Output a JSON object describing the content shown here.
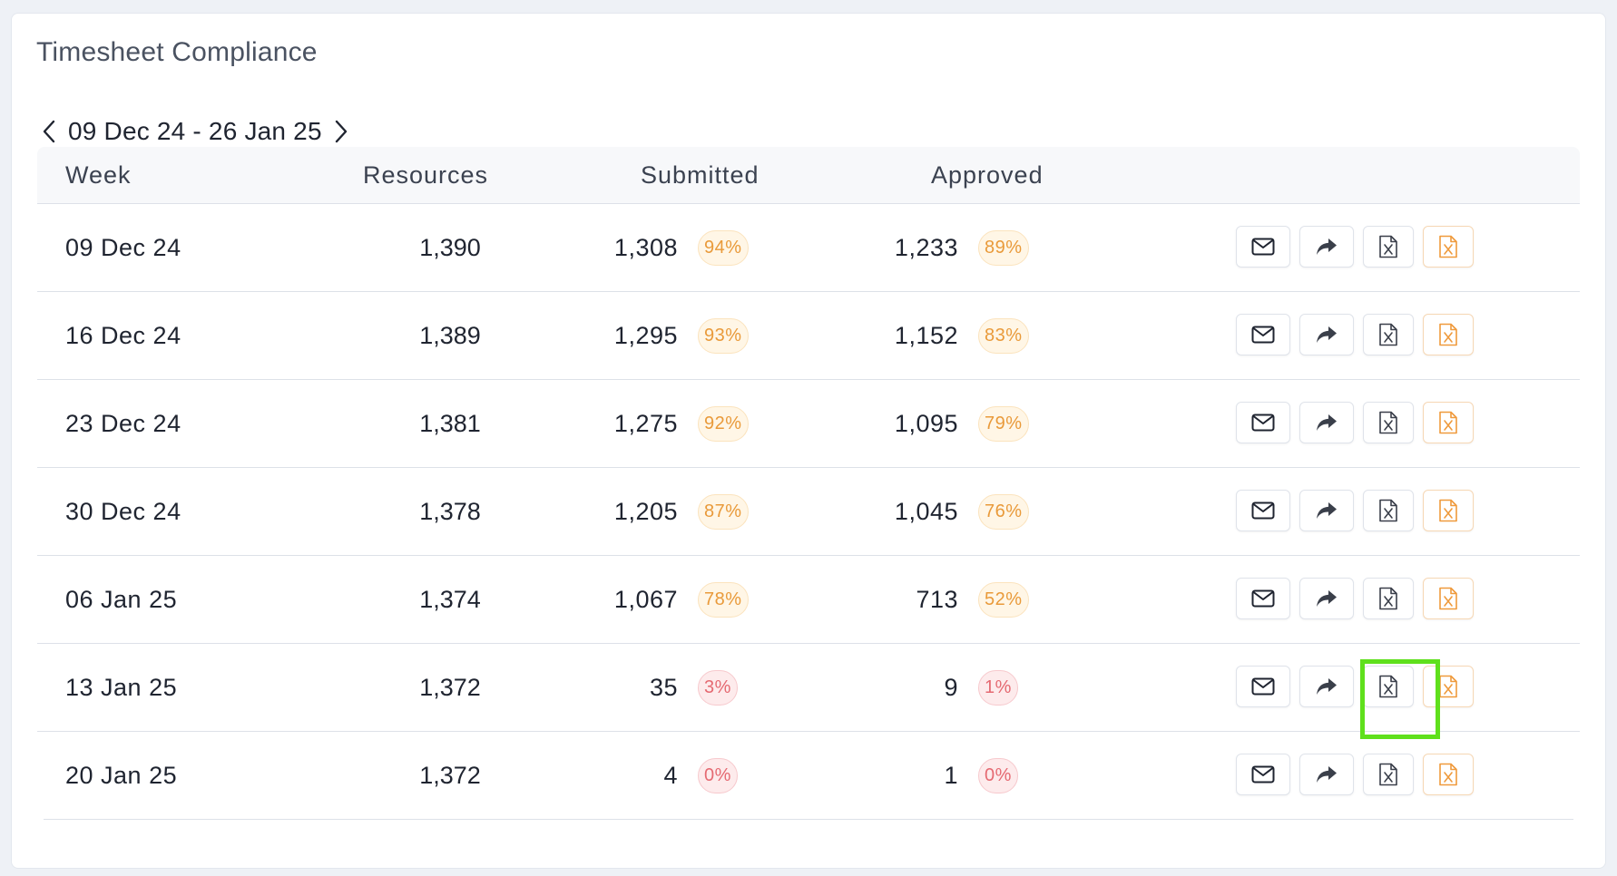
{
  "card": {
    "title": "Timesheet Compliance"
  },
  "date_nav": {
    "range": "09 Dec 24 - 26 Jan 25"
  },
  "table": {
    "headers": {
      "week": "Week",
      "resources": "Resources",
      "submitted": "Submitted",
      "approved": "Approved"
    },
    "rows": [
      {
        "week": "09 Dec 24",
        "resources": "1,390",
        "submitted": "1,308",
        "submitted_pct": "94%",
        "approved": "1,233",
        "approved_pct": "89%"
      },
      {
        "week": "16 Dec 24",
        "resources": "1,389",
        "submitted": "1,295",
        "submitted_pct": "93%",
        "approved": "1,152",
        "approved_pct": "83%"
      },
      {
        "week": "23 Dec 24",
        "resources": "1,381",
        "submitted": "1,275",
        "submitted_pct": "92%",
        "approved": "1,095",
        "approved_pct": "79%"
      },
      {
        "week": "30 Dec 24",
        "resources": "1,378",
        "submitted": "1,205",
        "submitted_pct": "87%",
        "approved": "1,045",
        "approved_pct": "76%"
      },
      {
        "week": "06 Jan 25",
        "resources": "1,374",
        "submitted": "1,067",
        "submitted_pct": "78%",
        "approved": "713",
        "approved_pct": "52%"
      },
      {
        "week": "13 Jan 25",
        "resources": "1,372",
        "submitted": "35",
        "submitted_pct": "3%",
        "approved": "9",
        "approved_pct": "1%"
      },
      {
        "week": "20 Jan 25",
        "resources": "1,372",
        "submitted": "4",
        "submitted_pct": "0%",
        "approved": "1",
        "approved_pct": "0%"
      }
    ],
    "row_actions": [
      "mail-icon",
      "share-icon",
      "excel-export-icon",
      "excel-export-orange-icon"
    ]
  },
  "colors": {
    "warn_text": "#e99a3a",
    "warn_bg": "#fff6e6",
    "bad_text": "#e56a72",
    "bad_bg": "#fdebec",
    "highlight": "#5fe01c"
  }
}
